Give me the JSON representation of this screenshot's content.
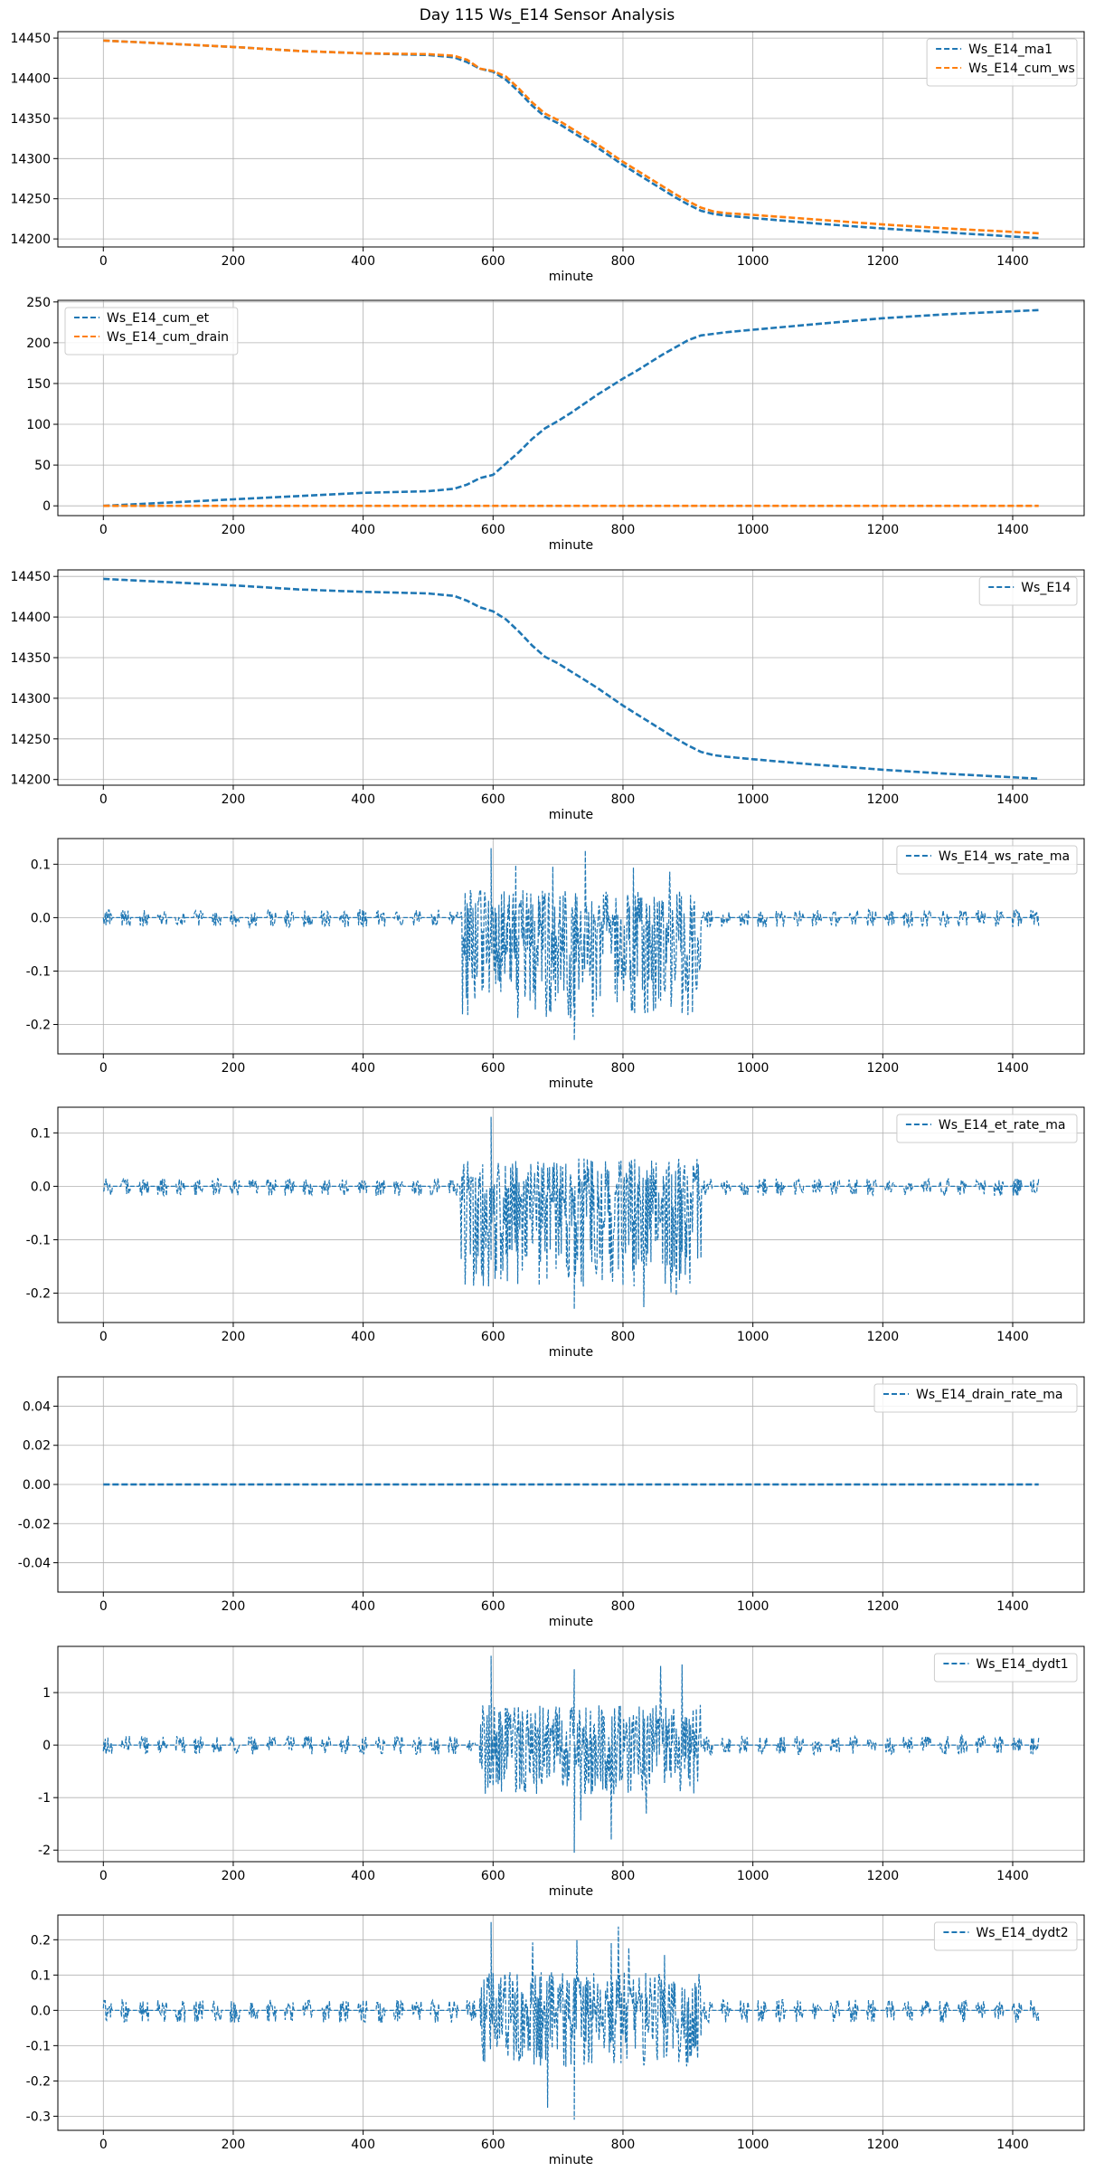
{
  "figure": {
    "title": "Day 115 Ws_E14 Sensor Analysis"
  },
  "chart_data": [
    {
      "type": "line",
      "xlabel": "minute",
      "ylabel": "",
      "xlim": [
        -70,
        1510
      ],
      "ylim": [
        14190,
        14458
      ],
      "xticks": [
        0,
        200,
        400,
        600,
        800,
        1000,
        1200,
        1400
      ],
      "yticks": [
        14200,
        14250,
        14300,
        14350,
        14400,
        14450
      ],
      "grid": true,
      "legend": "top-right",
      "series": [
        {
          "name": "Ws_E14_ma1",
          "color": "#1f77b4",
          "style": "dashed",
          "x": [
            0,
            100,
            200,
            300,
            400,
            500,
            540,
            560,
            580,
            600,
            620,
            640,
            660,
            680,
            700,
            720,
            740,
            760,
            780,
            800,
            820,
            840,
            860,
            880,
            900,
            920,
            940,
            960,
            1000,
            1100,
            1200,
            1300,
            1440
          ],
          "y": [
            14447,
            14443,
            14439,
            14434,
            14431,
            14429,
            14426,
            14420,
            14412,
            14408,
            14398,
            14383,
            14366,
            14352,
            14344,
            14334,
            14324,
            14314,
            14303,
            14292,
            14282,
            14272,
            14262,
            14252,
            14243,
            14235,
            14231,
            14229,
            14226,
            14219,
            14213,
            14208,
            14201
          ]
        },
        {
          "name": "Ws_E14_cum_ws",
          "color": "#ff7f0e",
          "style": "dashed",
          "x": [
            0,
            100,
            200,
            300,
            400,
            500,
            540,
            560,
            580,
            600,
            620,
            640,
            660,
            680,
            700,
            720,
            740,
            760,
            780,
            800,
            820,
            840,
            860,
            880,
            900,
            920,
            940,
            960,
            1000,
            1100,
            1200,
            1300,
            1440
          ],
          "y": [
            14447,
            14443,
            14439,
            14434,
            14431,
            14430,
            14428,
            14423,
            14412,
            14409,
            14402,
            14387,
            14370,
            14356,
            14348,
            14338,
            14328,
            14318,
            14307,
            14296,
            14286,
            14276,
            14266,
            14256,
            14247,
            14239,
            14234,
            14232,
            14230,
            14224,
            14218,
            14213,
            14207
          ]
        }
      ]
    },
    {
      "type": "line",
      "xlabel": "minute",
      "ylabel": "",
      "xlim": [
        -70,
        1510
      ],
      "ylim": [
        -12,
        252
      ],
      "xticks": [
        0,
        200,
        400,
        600,
        800,
        1000,
        1200,
        1400
      ],
      "yticks": [
        0,
        50,
        100,
        150,
        200,
        250
      ],
      "grid": true,
      "legend": "top-left",
      "series": [
        {
          "name": "Ws_E14_cum_et",
          "color": "#1f77b4",
          "style": "dashed",
          "x": [
            0,
            100,
            200,
            300,
            400,
            500,
            540,
            560,
            580,
            600,
            620,
            640,
            660,
            680,
            700,
            720,
            740,
            760,
            780,
            800,
            820,
            840,
            860,
            880,
            900,
            920,
            960,
            1000,
            1100,
            1200,
            1300,
            1440
          ],
          "y": [
            0,
            4,
            8,
            12,
            16,
            18,
            21,
            26,
            34,
            38,
            52,
            66,
            82,
            95,
            104,
            114,
            125,
            136,
            146,
            156,
            165,
            175,
            185,
            194,
            203,
            209,
            213,
            216,
            223,
            230,
            235,
            240
          ]
        },
        {
          "name": "Ws_E14_cum_drain",
          "color": "#ff7f0e",
          "style": "dashed",
          "x": [
            0,
            1440
          ],
          "y": [
            0,
            0
          ]
        }
      ]
    },
    {
      "type": "line",
      "xlabel": "minute",
      "ylabel": "",
      "xlim": [
        -70,
        1510
      ],
      "ylim": [
        14193,
        14458
      ],
      "xticks": [
        0,
        200,
        400,
        600,
        800,
        1000,
        1200,
        1400
      ],
      "yticks": [
        14200,
        14250,
        14300,
        14350,
        14400,
        14450
      ],
      "grid": true,
      "legend": "top-right",
      "series": [
        {
          "name": "Ws_E14",
          "color": "#1f77b4",
          "style": "dashed",
          "x": [
            0,
            100,
            200,
            300,
            400,
            500,
            540,
            560,
            580,
            600,
            620,
            640,
            660,
            680,
            700,
            720,
            740,
            760,
            780,
            800,
            820,
            840,
            860,
            880,
            900,
            920,
            940,
            960,
            1000,
            1100,
            1200,
            1300,
            1440
          ],
          "y": [
            14447,
            14443,
            14439,
            14434,
            14431,
            14429,
            14426,
            14420,
            14412,
            14407,
            14397,
            14382,
            14365,
            14351,
            14343,
            14333,
            14323,
            14313,
            14302,
            14291,
            14281,
            14271,
            14261,
            14251,
            14242,
            14234,
            14230,
            14228,
            14225,
            14218,
            14212,
            14207,
            14201
          ]
        }
      ]
    },
    {
      "type": "line",
      "xlabel": "minute",
      "ylabel": "",
      "xlim": [
        -70,
        1510
      ],
      "ylim": [
        -0.255,
        0.148
      ],
      "xticks": [
        0,
        200,
        400,
        600,
        800,
        1000,
        1200,
        1400
      ],
      "yticks": [
        -0.2,
        -0.1,
        0.0,
        0.1
      ],
      "ytick_labels": [
        "-0.2",
        "-0.1",
        "0.0",
        "0.1"
      ],
      "grid": true,
      "legend": "top-right",
      "series": [
        {
          "name": "Ws_E14_ws_rate_ma",
          "color": "#1f77b4",
          "style": "dashed",
          "x": [
            0,
            1440
          ],
          "y": [
            0,
            0
          ],
          "noise": {
            "baseline_amp_up": 0.015,
            "baseline_amp_down": 0.018,
            "active_start": 550,
            "active_end": 920,
            "active_amp_up": 0.08,
            "active_amp_down": 0.16,
            "spike_max": 0.13,
            "spike_min": -0.23
          }
        }
      ]
    },
    {
      "type": "line",
      "xlabel": "minute",
      "ylabel": "",
      "xlim": [
        -70,
        1510
      ],
      "ylim": [
        -0.255,
        0.148
      ],
      "xticks": [
        0,
        200,
        400,
        600,
        800,
        1000,
        1200,
        1400
      ],
      "yticks": [
        -0.2,
        -0.1,
        0.0,
        0.1
      ],
      "ytick_labels": [
        "-0.2",
        "-0.1",
        "0.0",
        "0.1"
      ],
      "grid": true,
      "legend": "top-right",
      "series": [
        {
          "name": "Ws_E14_et_rate_ma",
          "color": "#1f77b4",
          "style": "dashed",
          "x": [
            0,
            1440
          ],
          "y": [
            0,
            0
          ],
          "noise": {
            "baseline_amp_up": 0.015,
            "baseline_amp_down": 0.018,
            "active_start": 550,
            "active_end": 920,
            "active_amp_up": 0.08,
            "active_amp_down": 0.16,
            "spike_max": 0.13,
            "spike_min": -0.23
          }
        }
      ]
    },
    {
      "type": "line",
      "xlabel": "minute",
      "ylabel": "",
      "xlim": [
        -70,
        1510
      ],
      "ylim": [
        -0.055,
        0.055
      ],
      "xticks": [
        0,
        200,
        400,
        600,
        800,
        1000,
        1200,
        1400
      ],
      "yticks": [
        -0.04,
        -0.02,
        0.0,
        0.02,
        0.04
      ],
      "ytick_labels": [
        "-0.04",
        "-0.02",
        "0.00",
        "0.02",
        "0.04"
      ],
      "grid": true,
      "legend": "top-right",
      "series": [
        {
          "name": "Ws_E14_drain_rate_ma",
          "color": "#1f77b4",
          "style": "dashed",
          "x": [
            0,
            1440
          ],
          "y": [
            0,
            0
          ]
        }
      ]
    },
    {
      "type": "line",
      "xlabel": "minute",
      "ylabel": "",
      "xlim": [
        -70,
        1510
      ],
      "ylim": [
        -2.22,
        1.88
      ],
      "xticks": [
        0,
        200,
        400,
        600,
        800,
        1000,
        1200,
        1400
      ],
      "yticks": [
        -2,
        -1,
        0,
        1
      ],
      "ytick_labels": [
        "-2",
        "-1",
        "0",
        "1"
      ],
      "grid": true,
      "legend": "top-right",
      "series": [
        {
          "name": "Ws_E14_dydt1",
          "color": "#1f77b4",
          "style": "dashed",
          "x": [
            0,
            1440
          ],
          "y": [
            0,
            0
          ],
          "noise": {
            "baseline_amp_up": 0.18,
            "baseline_amp_down": 0.18,
            "active_start": 580,
            "active_end": 920,
            "active_amp_up": 0.8,
            "active_amp_down": 0.9,
            "spike_max": 1.7,
            "spike_min": -2.05
          }
        }
      ]
    },
    {
      "type": "line",
      "xlabel": "minute",
      "ylabel": "",
      "xlim": [
        -70,
        1510
      ],
      "ylim": [
        -0.34,
        0.27
      ],
      "xticks": [
        0,
        200,
        400,
        600,
        800,
        1000,
        1200,
        1400
      ],
      "yticks": [
        -0.3,
        -0.2,
        -0.1,
        0.0,
        0.1,
        0.2
      ],
      "ytick_labels": [
        "-0.3",
        "-0.2",
        "-0.1",
        "0.0",
        "0.1",
        "0.2"
      ],
      "grid": true,
      "legend": "top-right",
      "series": [
        {
          "name": "Ws_E14_dydt2",
          "color": "#1f77b4",
          "style": "dashed",
          "x": [
            0,
            1440
          ],
          "y": [
            0,
            0
          ],
          "noise": {
            "baseline_amp_up": 0.03,
            "baseline_amp_down": 0.035,
            "active_start": 580,
            "active_end": 920,
            "active_amp_up": 0.12,
            "active_amp_down": 0.15,
            "spike_max": 0.25,
            "spike_min": -0.31
          }
        }
      ]
    }
  ]
}
